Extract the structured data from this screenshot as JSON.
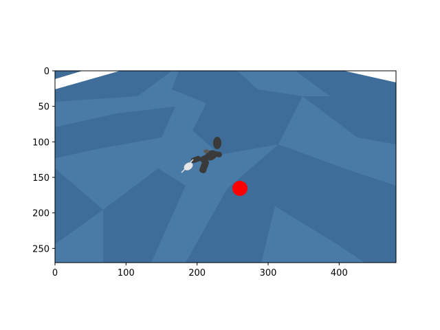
{
  "figure": {
    "colors": {
      "floor_light": "#4a7aa6",
      "floor_dark": "#3d6d98",
      "sky": "#ffffff",
      "target": "#ff0000",
      "agent": "#3a3a3a",
      "agent_highlight": "#5a5a5a",
      "agent_hand": "#e6e6e6"
    }
  },
  "chart_data": {
    "type": "image",
    "xlim": [
      0,
      480
    ],
    "ylim": [
      270,
      0
    ],
    "x_ticks": [
      {
        "value": 0,
        "label": "0"
      },
      {
        "value": 100,
        "label": "100"
      },
      {
        "value": 200,
        "label": "200"
      },
      {
        "value": 300,
        "label": "300"
      },
      {
        "value": 400,
        "label": "400"
      }
    ],
    "y_ticks": [
      {
        "value": 0,
        "label": "0"
      },
      {
        "value": 50,
        "label": "50"
      },
      {
        "value": 100,
        "label": "100"
      },
      {
        "value": 150,
        "label": "150"
      },
      {
        "value": 200,
        "label": "200"
      },
      {
        "value": 250,
        "label": "250"
      }
    ]
  }
}
